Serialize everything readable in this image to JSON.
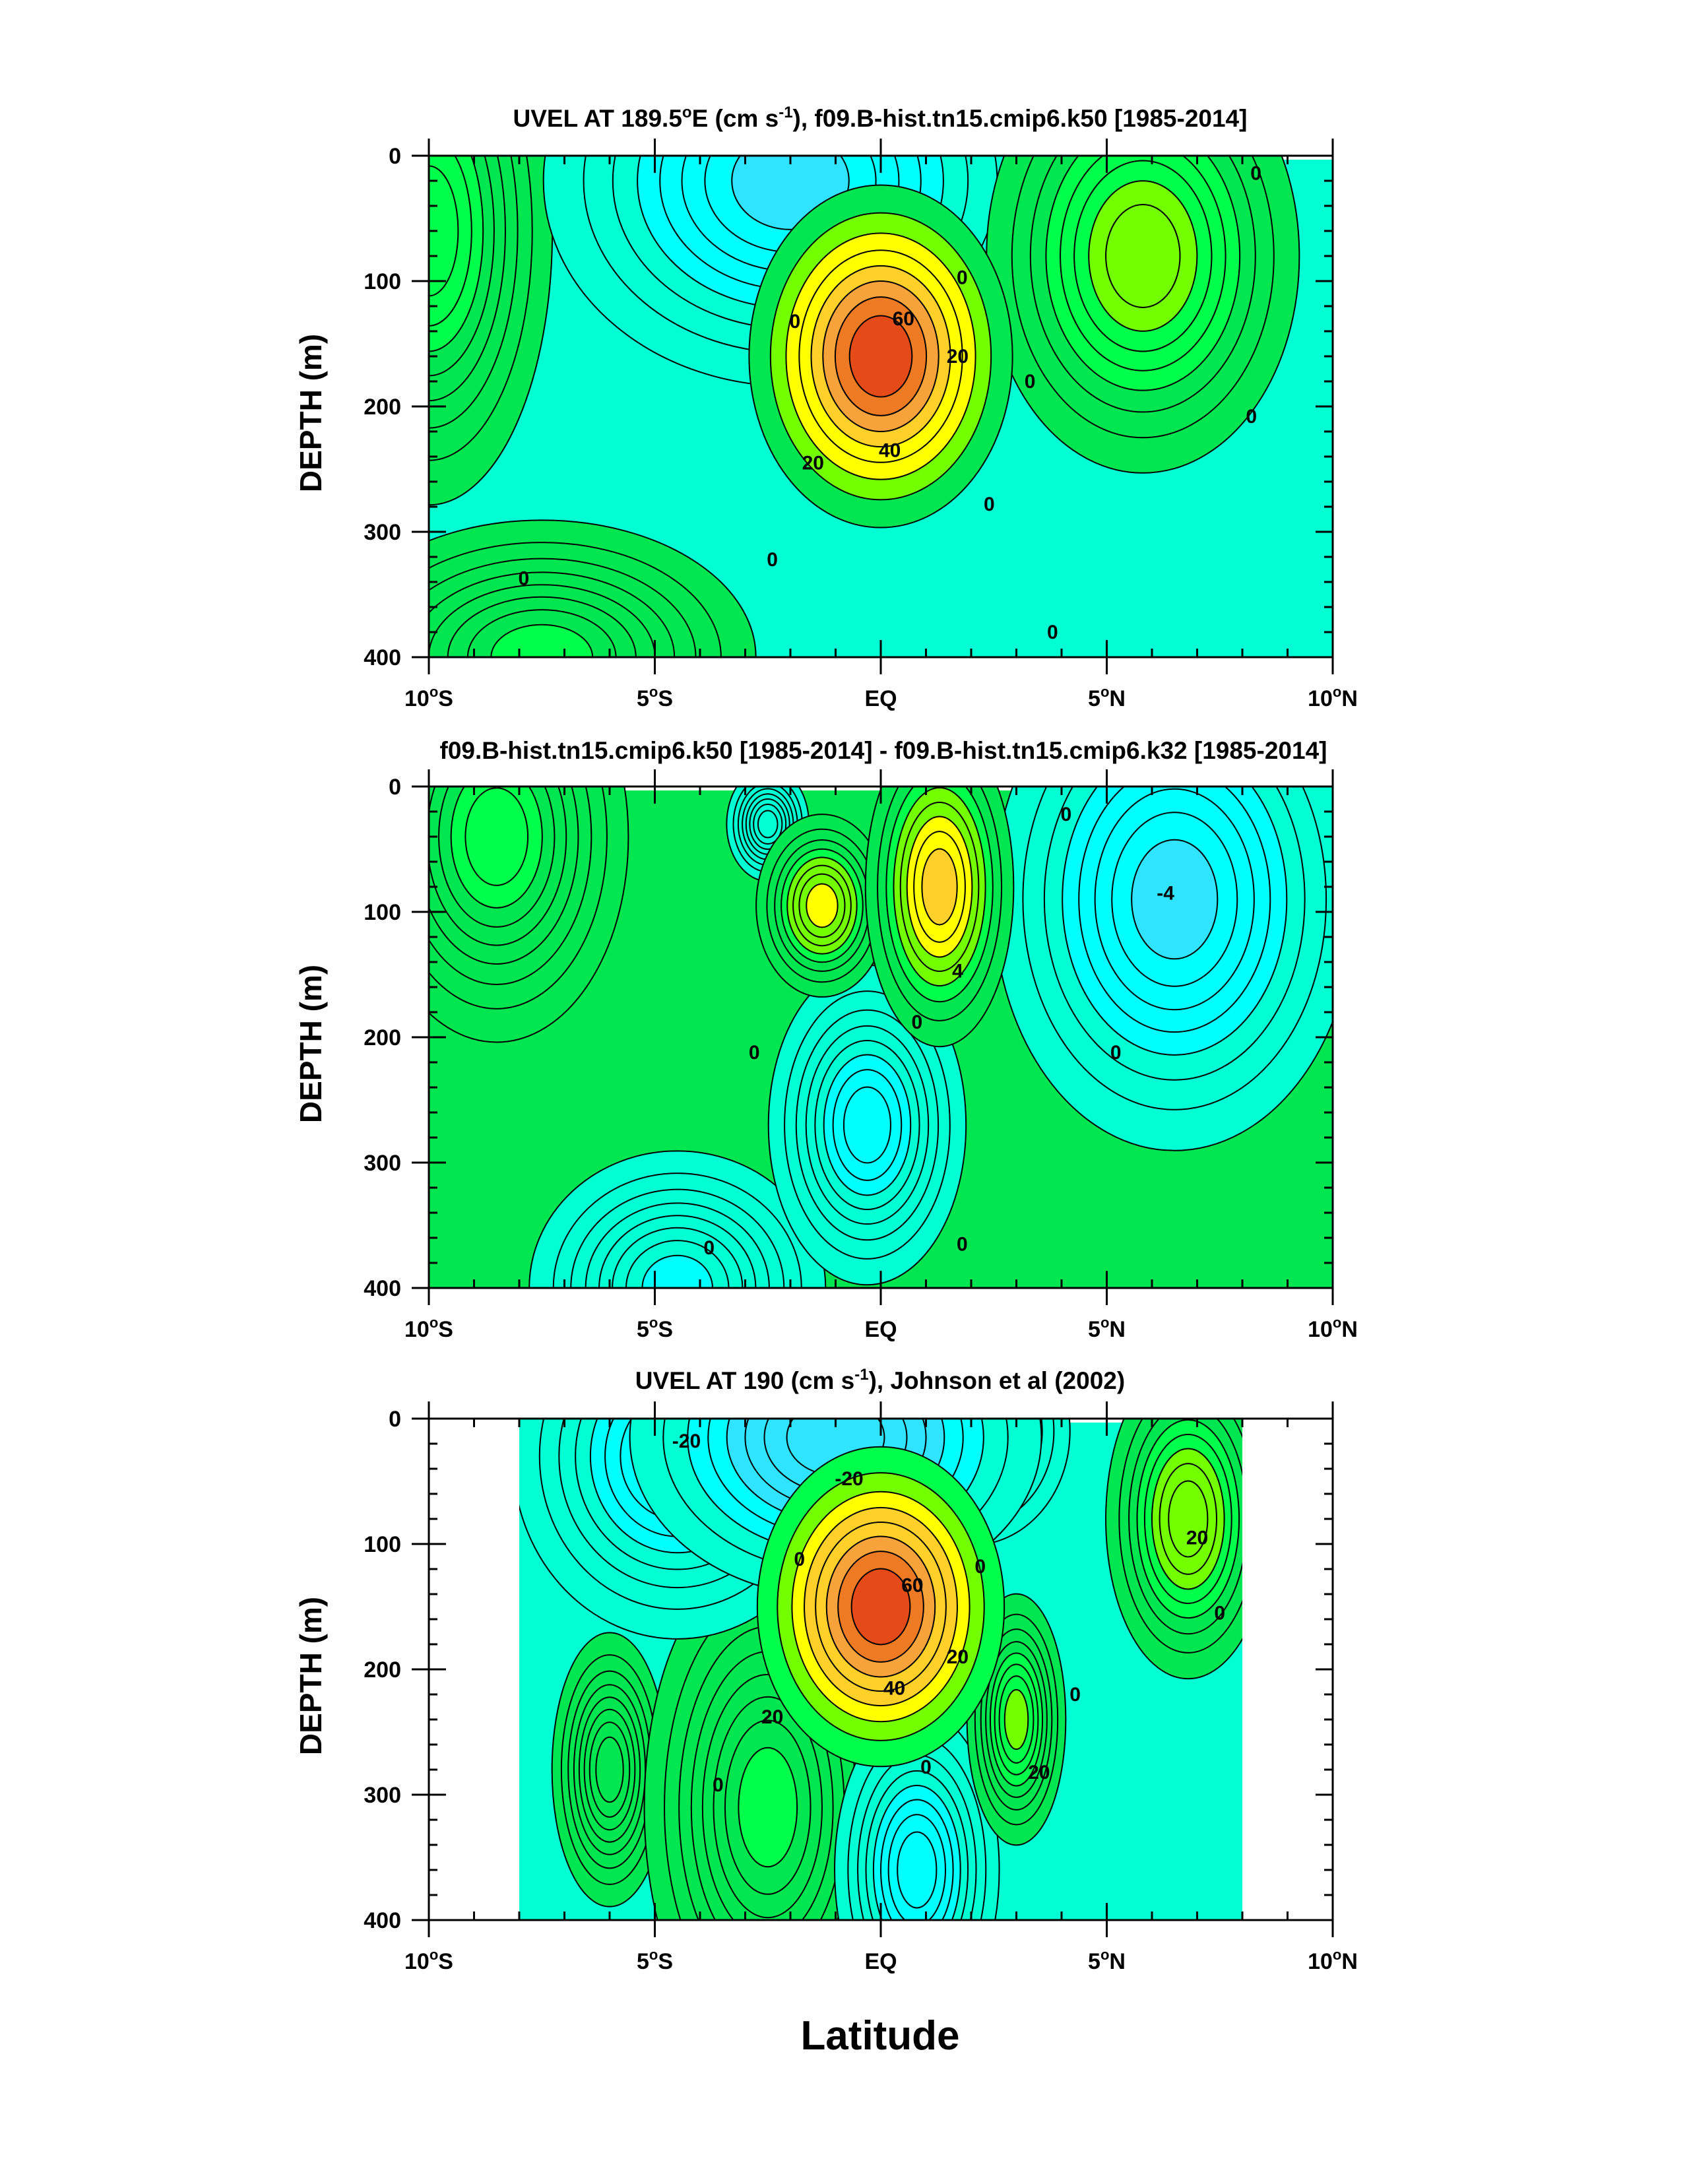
{
  "chart_data": [
    {
      "type": "contour",
      "title_main": "UVEL AT 189.5",
      "title_deg": "o",
      "title_mid": "E (cm s",
      "title_sup": "-1",
      "title_tail": "), f09.B-hist.tn15.cmip6.k50 [1985-2014]",
      "xlabel": "",
      "ylabel": "DEPTH (m)",
      "xlim": [
        -10,
        10
      ],
      "ylim": [
        400,
        0
      ],
      "y_ticks": [
        "0",
        "100",
        "200",
        "300",
        "400"
      ],
      "x_ticks": [
        {
          "num": "10",
          "deg": "o",
          "hem": "S"
        },
        {
          "num": "5",
          "deg": "o",
          "hem": "S"
        },
        {
          "num": "EQ",
          "deg": "",
          "hem": ""
        },
        {
          "num": "5",
          "deg": "o",
          "hem": "N"
        },
        {
          "num": "10",
          "deg": "o",
          "hem": "N"
        }
      ],
      "features": [
        {
          "type": "max",
          "lat": 0.0,
          "depth": 160,
          "amp": 78,
          "sx": 1.6,
          "sy": 75
        },
        {
          "type": "max",
          "lat": 5.8,
          "depth": 80,
          "amp": 22,
          "sx": 1.9,
          "sy": 95
        },
        {
          "type": "max",
          "lat": -10.0,
          "depth": 60,
          "amp": 14,
          "sx": 1.5,
          "sy": 120
        },
        {
          "type": "max",
          "lat": -7.5,
          "depth": 400,
          "amp": 10,
          "sx": 2.6,
          "sy": 60
        },
        {
          "type": "min",
          "lat": -2.0,
          "depth": 20,
          "amp": -16,
          "sx": 3.0,
          "sy": 90
        }
      ],
      "contour_labels": [
        {
          "text": "0",
          "lat": -1.9,
          "depth": 132
        },
        {
          "text": "0",
          "lat": 1.8,
          "depth": 97
        },
        {
          "text": "60",
          "lat": 0.5,
          "depth": 130
        },
        {
          "text": "20",
          "lat": 1.7,
          "depth": 160
        },
        {
          "text": "0",
          "lat": 3.3,
          "depth": 180
        },
        {
          "text": "40",
          "lat": 0.2,
          "depth": 235
        },
        {
          "text": "20",
          "lat": -1.5,
          "depth": 245
        },
        {
          "text": "0",
          "lat": 2.4,
          "depth": 278
        },
        {
          "text": "0",
          "lat": 8.3,
          "depth": 14
        },
        {
          "text": "0",
          "lat": 8.2,
          "depth": 208
        },
        {
          "text": "0",
          "lat": -7.9,
          "depth": 337
        },
        {
          "text": "0",
          "lat": -2.4,
          "depth": 322
        },
        {
          "text": "0",
          "lat": 3.8,
          "depth": 380
        }
      ]
    },
    {
      "type": "contour",
      "title_main": "f09.B-hist.tn15.cmip6.k50 [1985-2014] - f09.B-hist.tn15.cmip6.k32 [1985-2014]",
      "xlabel": "",
      "ylabel": "DEPTH (m)",
      "xlim": [
        -10,
        10
      ],
      "ylim": [
        400,
        0
      ],
      "y_ticks": [
        "0",
        "100",
        "200",
        "300",
        "400"
      ],
      "x_ticks": [
        {
          "num": "10",
          "deg": "o",
          "hem": "S"
        },
        {
          "num": "5",
          "deg": "o",
          "hem": "S"
        },
        {
          "num": "EQ",
          "deg": "",
          "hem": ""
        },
        {
          "num": "5",
          "deg": "o",
          "hem": "N"
        },
        {
          "num": "10",
          "deg": "o",
          "hem": "N"
        }
      ],
      "features": [
        {
          "type": "max",
          "lat": 1.3,
          "depth": 80,
          "amp": 9,
          "sx": 0.9,
          "sy": 70
        },
        {
          "type": "max",
          "lat": -1.3,
          "depth": 95,
          "amp": 6.5,
          "sx": 0.8,
          "sy": 40
        },
        {
          "type": "max",
          "lat": -8.5,
          "depth": 40,
          "amp": 3,
          "sx": 1.6,
          "sy": 90
        },
        {
          "type": "min",
          "lat": 6.5,
          "depth": 90,
          "amp": -6,
          "sx": 2.2,
          "sy": 110
        },
        {
          "type": "min",
          "lat": -0.3,
          "depth": 270,
          "amp": -4.5,
          "sx": 1.2,
          "sy": 70
        },
        {
          "type": "min",
          "lat": -4.5,
          "depth": 400,
          "amp": -3,
          "sx": 1.8,
          "sy": 60
        },
        {
          "type": "min",
          "lat": -2.5,
          "depth": 30,
          "amp": -2.5,
          "sx": 0.5,
          "sy": 25
        }
      ],
      "contour_labels": [
        {
          "text": "0",
          "lat": 4.1,
          "depth": 22
        },
        {
          "text": "-4",
          "lat": 6.3,
          "depth": 85
        },
        {
          "text": "4",
          "lat": 1.7,
          "depth": 147
        },
        {
          "text": "0",
          "lat": 0.8,
          "depth": 188
        },
        {
          "text": "0",
          "lat": -2.8,
          "depth": 212
        },
        {
          "text": "0",
          "lat": 5.2,
          "depth": 212
        },
        {
          "text": "0",
          "lat": -3.8,
          "depth": 368
        },
        {
          "text": "0",
          "lat": 1.8,
          "depth": 365
        }
      ]
    },
    {
      "type": "contour",
      "title_main": "UVEL AT 190 (cm s",
      "title_sup": "-1",
      "title_tail": "), Johnson et al (2002)",
      "xlabel": "Latitude",
      "ylabel": "DEPTH (m)",
      "xlim": [
        -10,
        10
      ],
      "ylim": [
        400,
        0
      ],
      "data_range_lat": [
        -8,
        8
      ],
      "y_ticks": [
        "0",
        "100",
        "200",
        "300",
        "400"
      ],
      "x_ticks": [
        {
          "num": "10",
          "deg": "o",
          "hem": "S"
        },
        {
          "num": "5",
          "deg": "o",
          "hem": "S"
        },
        {
          "num": "EQ",
          "deg": "",
          "hem": ""
        },
        {
          "num": "5",
          "deg": "o",
          "hem": "N"
        },
        {
          "num": "10",
          "deg": "o",
          "hem": "N"
        }
      ],
      "features": [
        {
          "type": "max",
          "lat": 0.0,
          "depth": 150,
          "amp": 80,
          "sx": 1.5,
          "sy": 70
        },
        {
          "type": "max",
          "lat": 6.8,
          "depth": 80,
          "amp": 26,
          "sx": 1.0,
          "sy": 70
        },
        {
          "type": "max",
          "lat": 3.0,
          "depth": 240,
          "amp": 18,
          "sx": 0.6,
          "sy": 55
        },
        {
          "type": "max",
          "lat": -2.5,
          "depth": 310,
          "amp": 10,
          "sx": 1.5,
          "sy": 110
        },
        {
          "type": "max",
          "lat": -6.0,
          "depth": 280,
          "amp": 6,
          "sx": 0.7,
          "sy": 60
        },
        {
          "type": "min",
          "lat": -1.0,
          "depth": 15,
          "amp": -30,
          "sx": 2.5,
          "sy": 70
        },
        {
          "type": "min",
          "lat": 2.0,
          "depth": 10,
          "amp": -18,
          "sx": 1.2,
          "sy": 50
        },
        {
          "type": "min",
          "lat": -4.5,
          "depth": 30,
          "amp": -14,
          "sx": 2.0,
          "sy": 80
        },
        {
          "type": "min",
          "lat": 0.8,
          "depth": 360,
          "amp": -14,
          "sx": 1.0,
          "sy": 70
        }
      ],
      "contour_labels": [
        {
          "text": "-20",
          "lat": -4.3,
          "depth": 18
        },
        {
          "text": "-20",
          "lat": -0.7,
          "depth": 48
        },
        {
          "text": "0",
          "lat": -1.8,
          "depth": 112
        },
        {
          "text": "0",
          "lat": 2.2,
          "depth": 118
        },
        {
          "text": "60",
          "lat": 0.7,
          "depth": 133
        },
        {
          "text": "0",
          "lat": 7.5,
          "depth": 155
        },
        {
          "text": "20",
          "lat": 1.7,
          "depth": 190
        },
        {
          "text": "40",
          "lat": 0.3,
          "depth": 215
        },
        {
          "text": "20",
          "lat": -2.4,
          "depth": 238
        },
        {
          "text": "0",
          "lat": 4.3,
          "depth": 220
        },
        {
          "text": "20",
          "lat": 3.5,
          "depth": 282
        },
        {
          "text": "0",
          "lat": 1.0,
          "depth": 278
        },
        {
          "text": "0",
          "lat": -3.6,
          "depth": 292
        },
        {
          "text": "20",
          "lat": 7.0,
          "depth": 95
        }
      ]
    }
  ]
}
